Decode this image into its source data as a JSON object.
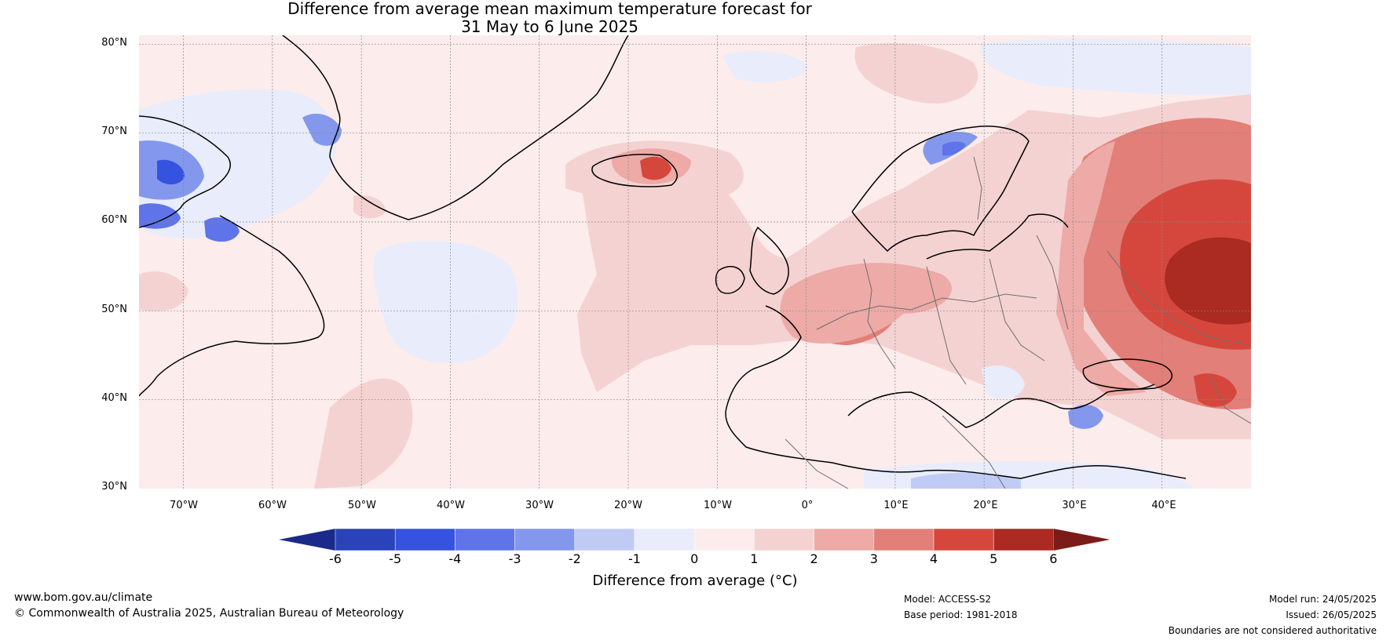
{
  "title": {
    "line1": "Difference from average mean maximum temperature forecast for",
    "line2": "31 May to 6 June 2025"
  },
  "map": {
    "latitude_labels": [
      "80°N",
      "70°N",
      "60°N",
      "50°N",
      "40°N",
      "30°N"
    ],
    "longitude_labels": [
      "70°W",
      "60°W",
      "50°W",
      "40°W",
      "30°W",
      "20°W",
      "10°W",
      "0°",
      "10°E",
      "20°E",
      "30°E",
      "40°E"
    ],
    "extent": {
      "lon_min": -75,
      "lon_max": 50,
      "lat_min": 30,
      "lat_max": 81
    },
    "anomaly_fields": [
      {
        "name": "Russia warm core",
        "lon": 44,
        "lat": 53,
        "value": 6
      },
      {
        "name": "Eastern Europe warm",
        "lon": 40,
        "lat": 55,
        "value": 5
      },
      {
        "name": "Turkey warm",
        "lon": 40,
        "lat": 39,
        "value": 5
      },
      {
        "name": "Iceland warm",
        "lon": -17,
        "lat": 65,
        "value": 4
      },
      {
        "name": "France warm",
        "lon": 1,
        "lat": 48,
        "value": 3
      },
      {
        "name": "Central Europe warm",
        "lon": 12,
        "lat": 51,
        "value": 2
      },
      {
        "name": "Baffin cool",
        "lon": -70,
        "lat": 65,
        "value": -4
      },
      {
        "name": "Labrador cool",
        "lon": -65,
        "lat": 59,
        "value": -3
      },
      {
        "name": "Norway cool",
        "lon": 15,
        "lat": 68,
        "value": -3
      },
      {
        "name": "Mid Atlantic cool",
        "lon": -38,
        "lat": 50,
        "value": -1
      },
      {
        "name": "Aegean cool",
        "lon": 28,
        "lat": 38,
        "value": -2
      }
    ]
  },
  "colorbar": {
    "title": "Difference from average (°C)",
    "tick_labels": [
      "-6",
      "-5",
      "-4",
      "-3",
      "-2",
      "-1",
      "0",
      "1",
      "2",
      "3",
      "4",
      "5",
      "6"
    ],
    "colors": [
      "#1b2a8a",
      "#2a43b8",
      "#3553de",
      "#5f74e8",
      "#8397ec",
      "#c0cbf5",
      "#e9ecfb",
      "#fcecec",
      "#f5d2d2",
      "#edaaa7",
      "#e27f78",
      "#d5473d",
      "#ab2a21",
      "#7b1c18"
    ]
  },
  "footer": {
    "website": "www.bom.gov.au/climate",
    "copyright": "© Commonwealth of Australia 2025, Australian Bureau of Meteorology",
    "model": "Model: ACCESS-S2",
    "base_period": "Base period: 1981-2018",
    "model_run": "Model run: 24/05/2025",
    "issued": "Issued: 26/05/2025",
    "boundaries": "Boundaries are not considered authoritative"
  }
}
